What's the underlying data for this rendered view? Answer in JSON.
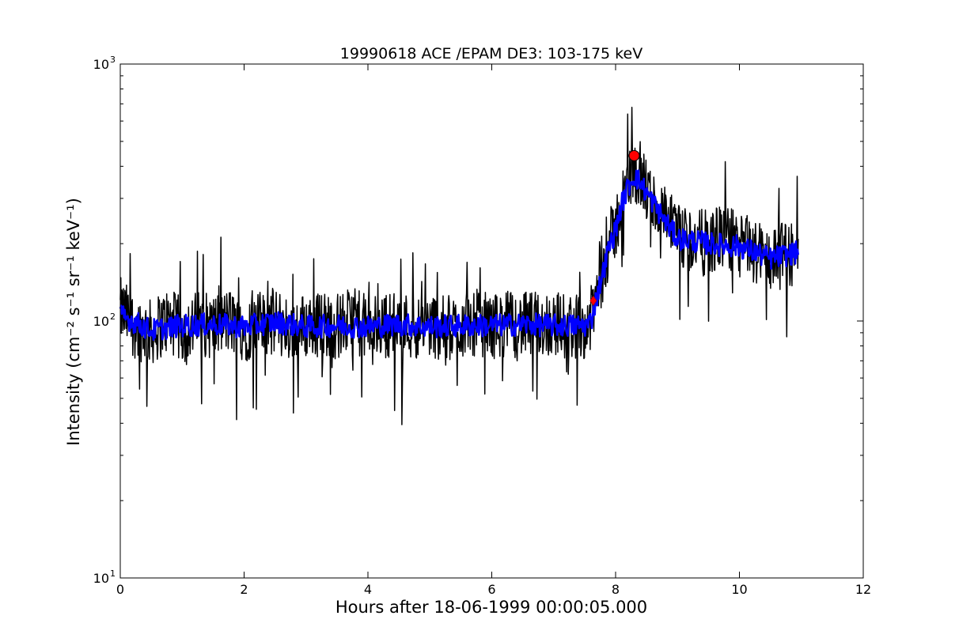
{
  "chart_data": {
    "type": "line",
    "title": "19990618 ACE /EPAM DE3: 103-175 keV",
    "xlabel": "Hours after 18-06-1999 00:00:05.000",
    "ylabel": "Intensity (cm⁻² s⁻¹ sr⁻¹ keV⁻¹)",
    "xlim": [
      0,
      12
    ],
    "ylim": [
      10,
      1000
    ],
    "yscale": "log",
    "grid": false,
    "x_ticks": [
      0,
      2,
      4,
      6,
      8,
      10,
      12
    ],
    "x_tick_labels": [
      "0",
      "2",
      "4",
      "6",
      "8",
      "10",
      "12"
    ],
    "y_ticks": [
      10,
      100,
      1000
    ],
    "y_tick_labels": [
      "10",
      "10",
      "10"
    ],
    "y_tick_exponents": [
      "1",
      "2",
      "3"
    ],
    "series": [
      {
        "color": "#000000",
        "style": "line",
        "x": [
          0.0,
          0.25,
          0.5,
          0.75,
          1.0,
          1.25,
          1.5,
          1.75,
          2.0,
          2.25,
          2.5,
          2.75,
          3.0,
          3.25,
          3.5,
          3.75,
          4.0,
          4.25,
          4.5,
          4.75,
          5.0,
          5.25,
          5.5,
          5.75,
          6.0,
          6.25,
          6.5,
          6.75,
          7.0,
          7.25,
          7.5,
          7.6,
          7.7,
          7.8,
          7.9,
          8.0,
          8.1,
          8.2,
          8.3,
          8.4,
          8.5,
          8.6,
          8.7,
          8.8,
          8.9,
          9.0,
          9.25,
          9.5,
          9.75,
          10.0,
          10.25,
          10.5,
          10.75,
          10.95
        ],
        "y": [
          110,
          95,
          90,
          100,
          92,
          98,
          95,
          100,
          93,
          97,
          100,
          92,
          96,
          98,
          95,
          100,
          94,
          96,
          98,
          95,
          97,
          93,
          96,
          99,
          95,
          98,
          96,
          97,
          98,
          95,
          96,
          100,
          130,
          160,
          200,
          230,
          290,
          340,
          390,
          350,
          320,
          290,
          270,
          250,
          230,
          210,
          205,
          200,
          215,
          195,
          185,
          175,
          180,
          185
        ]
      },
      {
        "color": "#0000ff",
        "style": "smoothed line",
        "x": [
          0.0,
          0.5,
          1.0,
          1.5,
          2.0,
          2.5,
          3.0,
          3.5,
          4.0,
          4.5,
          5.0,
          5.5,
          6.0,
          6.5,
          7.0,
          7.5,
          7.6,
          7.7,
          7.8,
          7.9,
          8.0,
          8.1,
          8.2,
          8.3,
          8.4,
          8.5,
          8.6,
          8.7,
          8.8,
          8.9,
          9.0,
          9.5,
          10.0,
          10.5,
          10.95
        ],
        "y": [
          105,
          92,
          96,
          97,
          95,
          99,
          95,
          96,
          95,
          97,
          95,
          96,
          96,
          97,
          96,
          96,
          99,
          125,
          155,
          195,
          225,
          285,
          330,
          370,
          345,
          315,
          290,
          265,
          245,
          225,
          210,
          200,
          195,
          175,
          185
        ]
      }
    ],
    "markers": [
      {
        "x": 8.3,
        "y": 440,
        "shape": "circle",
        "color": "#ff0000"
      },
      {
        "x": 7.64,
        "y": 120,
        "shape": "diamond",
        "color": "#ff0000"
      }
    ]
  }
}
